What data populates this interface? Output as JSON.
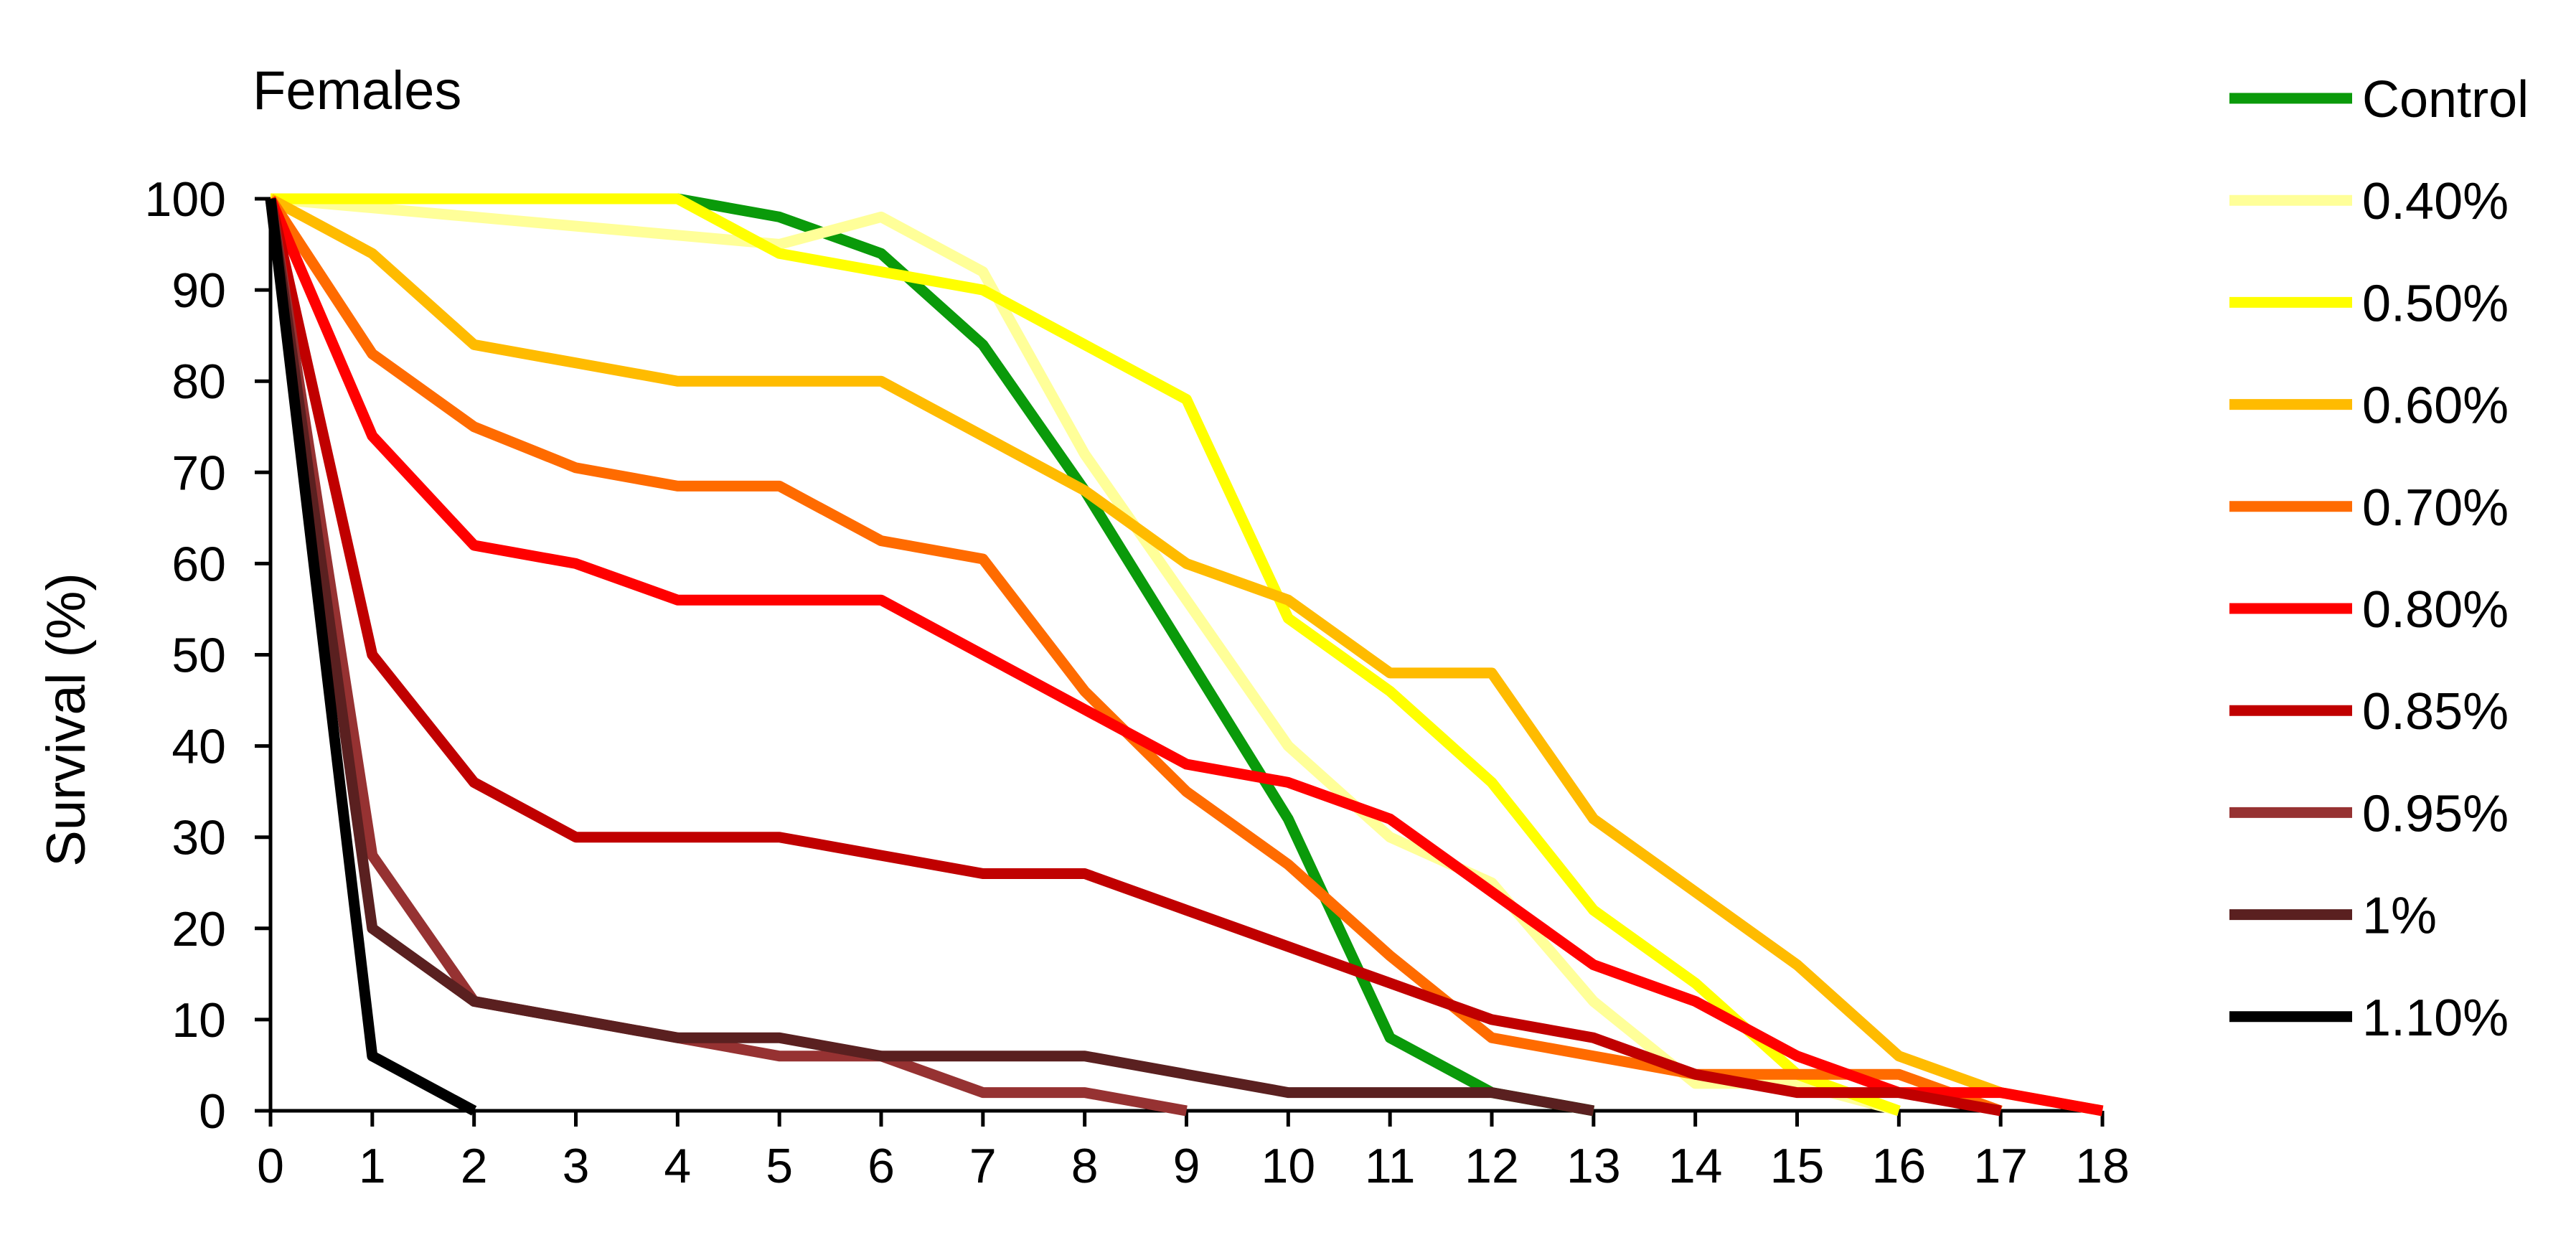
{
  "chart_data": {
    "type": "line",
    "title": "Females",
    "xlabel": "",
    "ylabel": "Survival (%)",
    "xlim": [
      0,
      18
    ],
    "ylim": [
      0,
      100
    ],
    "x_ticks": [
      0,
      1,
      2,
      3,
      4,
      5,
      6,
      7,
      8,
      9,
      10,
      11,
      12,
      13,
      14,
      15,
      16,
      17,
      18
    ],
    "y_ticks": [
      0,
      10,
      20,
      30,
      40,
      50,
      60,
      70,
      80,
      90,
      100
    ],
    "grid": false,
    "legend_position": "right",
    "series": [
      {
        "name": "Control",
        "color": "#0a9a0a",
        "points": [
          [
            0,
            100
          ],
          [
            1,
            100
          ],
          [
            2,
            100
          ],
          [
            3,
            100
          ],
          [
            4,
            100
          ],
          [
            5,
            98
          ],
          [
            6,
            94
          ],
          [
            7,
            84
          ],
          [
            8,
            68
          ],
          [
            9,
            50
          ],
          [
            10,
            32
          ],
          [
            11,
            8
          ],
          [
            12,
            2
          ],
          [
            13,
            0
          ]
        ]
      },
      {
        "name": "0.40%",
        "color": "#ffff99",
        "points": [
          [
            0,
            100
          ],
          [
            1,
            99
          ],
          [
            2,
            98
          ],
          [
            3,
            97
          ],
          [
            4,
            96
          ],
          [
            5,
            95
          ],
          [
            6,
            98
          ],
          [
            7,
            92
          ],
          [
            8,
            72
          ],
          [
            9,
            56
          ],
          [
            10,
            40
          ],
          [
            11,
            30
          ],
          [
            12,
            25
          ],
          [
            13,
            12
          ],
          [
            14,
            3
          ],
          [
            15,
            3
          ],
          [
            16,
            0
          ]
        ]
      },
      {
        "name": "0.50%",
        "color": "#ffff00",
        "points": [
          [
            0,
            100
          ],
          [
            1,
            100
          ],
          [
            2,
            100
          ],
          [
            3,
            100
          ],
          [
            4,
            100
          ],
          [
            5,
            94
          ],
          [
            6,
            92
          ],
          [
            7,
            90
          ],
          [
            8,
            84
          ],
          [
            9,
            78
          ],
          [
            10,
            54
          ],
          [
            11,
            46
          ],
          [
            12,
            36
          ],
          [
            13,
            22
          ],
          [
            14,
            14
          ],
          [
            15,
            4
          ],
          [
            16,
            0
          ]
        ]
      },
      {
        "name": "0.60%",
        "color": "#ffbb00",
        "points": [
          [
            0,
            100
          ],
          [
            1,
            94
          ],
          [
            2,
            84
          ],
          [
            3,
            82
          ],
          [
            4,
            80
          ],
          [
            5,
            80
          ],
          [
            6,
            80
          ],
          [
            7,
            74
          ],
          [
            8,
            68
          ],
          [
            9,
            60
          ],
          [
            10,
            56
          ],
          [
            11,
            48
          ],
          [
            12,
            48
          ],
          [
            13,
            32
          ],
          [
            14,
            24
          ],
          [
            15,
            16
          ],
          [
            16,
            6
          ],
          [
            17,
            2
          ],
          [
            18,
            0
          ]
        ]
      },
      {
        "name": "0.70%",
        "color": "#ff6b00",
        "points": [
          [
            0,
            100
          ],
          [
            1,
            83
          ],
          [
            2,
            75
          ],
          [
            3,
            70.5
          ],
          [
            4,
            68.5
          ],
          [
            5,
            68.5
          ],
          [
            6,
            62.5
          ],
          [
            7,
            60.5
          ],
          [
            8,
            46
          ],
          [
            9,
            35
          ],
          [
            10,
            27
          ],
          [
            11,
            17
          ],
          [
            12,
            8
          ],
          [
            13,
            6
          ],
          [
            14,
            4
          ],
          [
            15,
            4
          ],
          [
            16,
            4
          ],
          [
            17,
            0
          ]
        ]
      },
      {
        "name": "0.80%",
        "color": "#ff0000",
        "points": [
          [
            0,
            100
          ],
          [
            1,
            74
          ],
          [
            2,
            62
          ],
          [
            3,
            60
          ],
          [
            4,
            56
          ],
          [
            5,
            56
          ],
          [
            6,
            56
          ],
          [
            7,
            50
          ],
          [
            8,
            44
          ],
          [
            9,
            38
          ],
          [
            10,
            36
          ],
          [
            11,
            32
          ],
          [
            12,
            24
          ],
          [
            13,
            16
          ],
          [
            14,
            12
          ],
          [
            15,
            6
          ],
          [
            16,
            2
          ],
          [
            17,
            2
          ],
          [
            18,
            0
          ]
        ]
      },
      {
        "name": "0.85%",
        "color": "#c00000",
        "points": [
          [
            0,
            100
          ],
          [
            1,
            50
          ],
          [
            2,
            36
          ],
          [
            3,
            30
          ],
          [
            4,
            30
          ],
          [
            5,
            30
          ],
          [
            6,
            28
          ],
          [
            7,
            26
          ],
          [
            8,
            26
          ],
          [
            9,
            22
          ],
          [
            10,
            18
          ],
          [
            11,
            14
          ],
          [
            12,
            10
          ],
          [
            13,
            8
          ],
          [
            14,
            4
          ],
          [
            15,
            2
          ],
          [
            16,
            2
          ],
          [
            17,
            0
          ]
        ]
      },
      {
        "name": "0.95%",
        "color": "#963232",
        "points": [
          [
            0,
            100
          ],
          [
            1,
            28
          ],
          [
            2,
            12
          ],
          [
            3,
            10
          ],
          [
            4,
            8
          ],
          [
            5,
            6
          ],
          [
            6,
            6
          ],
          [
            7,
            2
          ],
          [
            8,
            2
          ],
          [
            9,
            0
          ]
        ]
      },
      {
        "name": "1%",
        "color": "#5a2020",
        "points": [
          [
            0,
            100
          ],
          [
            1,
            20
          ],
          [
            2,
            12
          ],
          [
            3,
            10
          ],
          [
            4,
            8
          ],
          [
            5,
            8
          ],
          [
            6,
            6
          ],
          [
            7,
            6
          ],
          [
            8,
            6
          ],
          [
            9,
            4
          ],
          [
            10,
            2
          ],
          [
            11,
            2
          ],
          [
            12,
            2
          ],
          [
            13,
            0
          ]
        ]
      },
      {
        "name": "1.10%",
        "color": "#000000",
        "points": [
          [
            0,
            100
          ],
          [
            1,
            6
          ],
          [
            2,
            0
          ]
        ]
      }
    ]
  }
}
